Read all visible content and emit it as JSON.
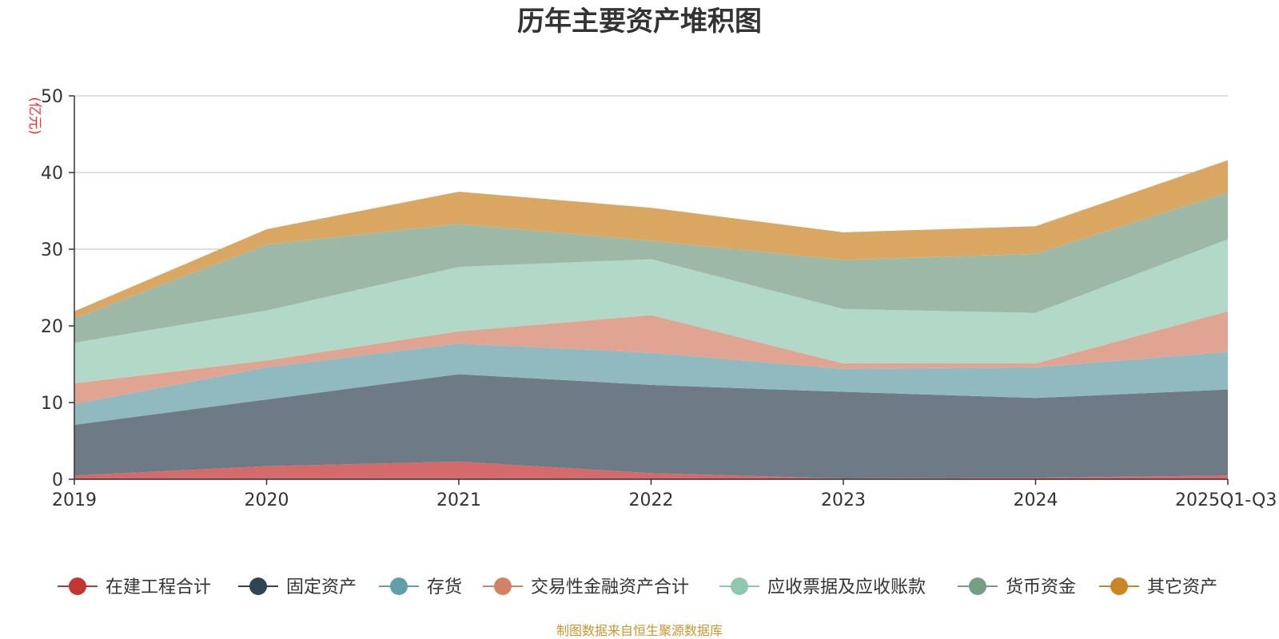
{
  "chart_data": {
    "type": "area",
    "stacked": true,
    "title": "历年主要资产堆积图",
    "unit_label": "(亿元)",
    "categories": [
      "2019",
      "2020",
      "2021",
      "2022",
      "2023",
      "2024",
      "2025Q1-Q3"
    ],
    "ylim": [
      0,
      50
    ],
    "yticks": [
      0,
      10,
      20,
      30,
      40,
      50
    ],
    "grid": true,
    "legend_position": "bottom",
    "series": [
      {
        "name": "在建工程合计",
        "color": "#c23531",
        "area_color": "#d46a6a",
        "values": [
          0.5,
          1.7,
          2.3,
          0.8,
          0.1,
          0.2,
          0.5
        ]
      },
      {
        "name": "固定资产",
        "color": "#2f4554",
        "area_color": "#6e7b87",
        "values": [
          6.6,
          8.7,
          11.4,
          11.5,
          11.3,
          10.4,
          11.2
        ]
      },
      {
        "name": "存货",
        "color": "#61a0a8",
        "area_color": "#90b9c0",
        "values": [
          2.7,
          4.2,
          4.0,
          4.2,
          3.0,
          4.0,
          4.9
        ]
      },
      {
        "name": "交易性金融资产合计",
        "color": "#d48265",
        "area_color": "#e0a592",
        "values": [
          2.7,
          0.9,
          1.6,
          4.9,
          0.7,
          0.5,
          5.3
        ]
      },
      {
        "name": "应收票据及应收账款",
        "color": "#91c7ae",
        "area_color": "#b2d8c7",
        "values": [
          5.3,
          6.5,
          8.4,
          7.3,
          7.1,
          6.6,
          9.4
        ]
      },
      {
        "name": "货币资金",
        "color": "#749f83",
        "area_color": "#9db8a6",
        "values": [
          3.2,
          8.6,
          5.6,
          2.4,
          6.4,
          7.7,
          6.1
        ]
      },
      {
        "name": "其它资产",
        "color": "#ca8622",
        "area_color": "#d9a761",
        "values": [
          0.9,
          2.0,
          4.2,
          4.3,
          3.6,
          3.6,
          4.2
        ]
      }
    ],
    "source_note": "制图数据来自恒生聚源数据库"
  }
}
